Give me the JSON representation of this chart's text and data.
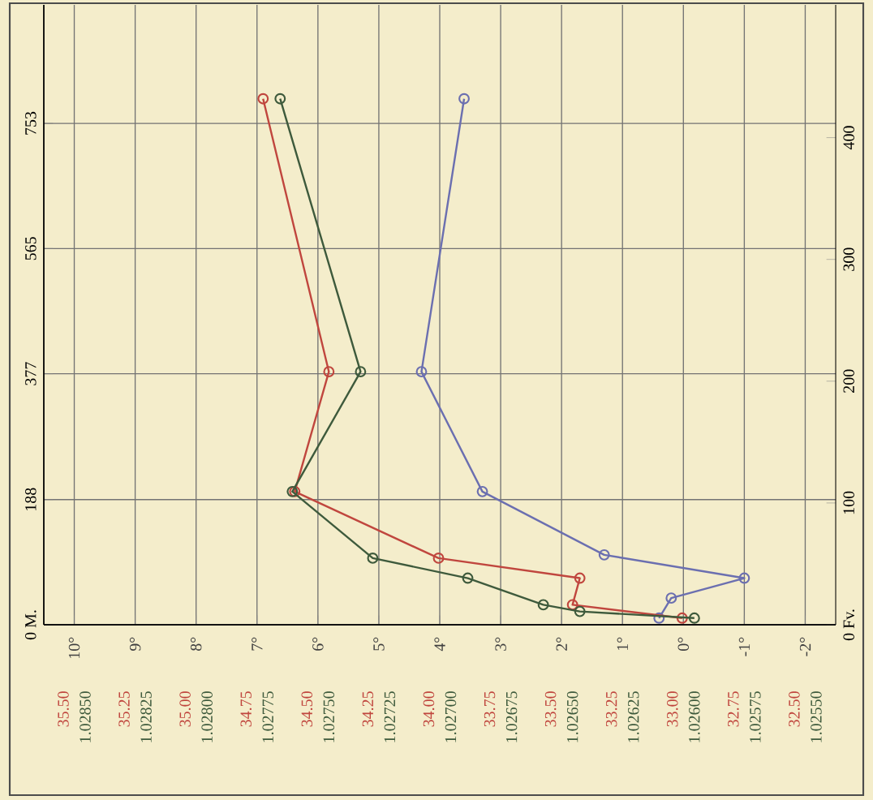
{
  "chart_data": [
    {
      "type": "line",
      "marker": "circle",
      "grid": true,
      "xlim": [
        10.5,
        -2.5
      ],
      "xticks": [
        {
          "value": 10,
          "label": "10°"
        },
        {
          "value": 9,
          "label": "9°"
        },
        {
          "value": 8,
          "label": "8°"
        },
        {
          "value": 7,
          "label": "7°"
        },
        {
          "value": 6,
          "label": "6°"
        },
        {
          "value": 5,
          "label": "5°"
        },
        {
          "value": 4,
          "label": "4°"
        },
        {
          "value": 3,
          "label": "3°"
        },
        {
          "value": 2,
          "label": "2°"
        },
        {
          "value": 1,
          "label": "1°"
        },
        {
          "value": 0,
          "label": "0°"
        },
        {
          "value": -1,
          "label": "-1°"
        },
        {
          "value": -2,
          "label": "-2°"
        }
      ],
      "ylim": [
        0,
        931
      ],
      "yticks": [
        {
          "value": 0,
          "label": "0 M."
        },
        188,
        377,
        565,
        753
      ],
      "y2lim": [
        0,
        509
      ],
      "y2ticks": [
        {
          "value": 0,
          "label": "0 Fv."
        },
        100,
        200,
        300,
        400
      ],
      "series": [
        {
          "color": "#6b6fb0",
          "x": [
            0.4,
            0.2,
            -1.0,
            1.3,
            3.3,
            4.3,
            3.6
          ],
          "values": [
            10,
            40,
            70,
            105,
            200,
            380,
            790
          ]
        }
      ]
    },
    {
      "type": "line",
      "marker": "circle",
      "tick_labels": "x",
      "xlim": [
        35.58,
        32.33
      ],
      "xticks": [
        {
          "value": 35.5,
          "label": "35.50"
        },
        {
          "value": 35.25,
          "label": "35.25"
        },
        {
          "value": 35.0,
          "label": "35.00"
        },
        {
          "value": 34.75,
          "label": "34.75"
        },
        {
          "value": 34.5,
          "label": "34.50"
        },
        {
          "value": 34.25,
          "label": "34.25"
        },
        {
          "value": 34.0,
          "label": "34.00"
        },
        {
          "value": 33.75,
          "label": "33.75"
        },
        {
          "value": 33.5,
          "label": "33.50"
        },
        {
          "value": 33.25,
          "label": "33.25"
        },
        {
          "value": 33.0,
          "label": "33.00"
        },
        {
          "value": 32.75,
          "label": "32.75"
        },
        {
          "value": 32.5,
          "label": "32.50"
        }
      ],
      "ylim": [
        0,
        931
      ],
      "series": [
        {
          "color": "#c0463e",
          "x": [
            32.96,
            33.41,
            33.38,
            33.96,
            34.55,
            34.41,
            34.68
          ],
          "values": [
            10,
            30,
            70,
            100,
            200,
            380,
            790
          ]
        }
      ]
    },
    {
      "type": "line",
      "marker": "circle",
      "tick_labels": "x",
      "xlim": [
        1.02867,
        1.02542
      ],
      "xticks": [
        {
          "value": 1.0285,
          "label": "1.02850"
        },
        {
          "value": 1.02825,
          "label": "1.02825"
        },
        {
          "value": 1.028,
          "label": "1.02800"
        },
        {
          "value": 1.02775,
          "label": "1.02775"
        },
        {
          "value": 1.0275,
          "label": "1.02750"
        },
        {
          "value": 1.02725,
          "label": "1.02725"
        },
        {
          "value": 1.027,
          "label": "1.02700"
        },
        {
          "value": 1.02675,
          "label": "1.02675"
        },
        {
          "value": 1.0265,
          "label": "1.02650"
        },
        {
          "value": 1.02625,
          "label": "1.02625"
        },
        {
          "value": 1.026,
          "label": "1.02600"
        },
        {
          "value": 1.02575,
          "label": "1.02575"
        },
        {
          "value": 1.0255,
          "label": "1.02550"
        }
      ],
      "ylim": [
        0,
        931
      ],
      "series": [
        {
          "color": "#3e5a3c",
          "x": [
            1.026,
            1.02647,
            1.02662,
            1.02693,
            1.02732,
            1.02765,
            1.02737,
            1.0277
          ],
          "values": [
            10,
            20,
            30,
            70,
            100,
            200,
            380,
            790
          ]
        }
      ]
    }
  ]
}
